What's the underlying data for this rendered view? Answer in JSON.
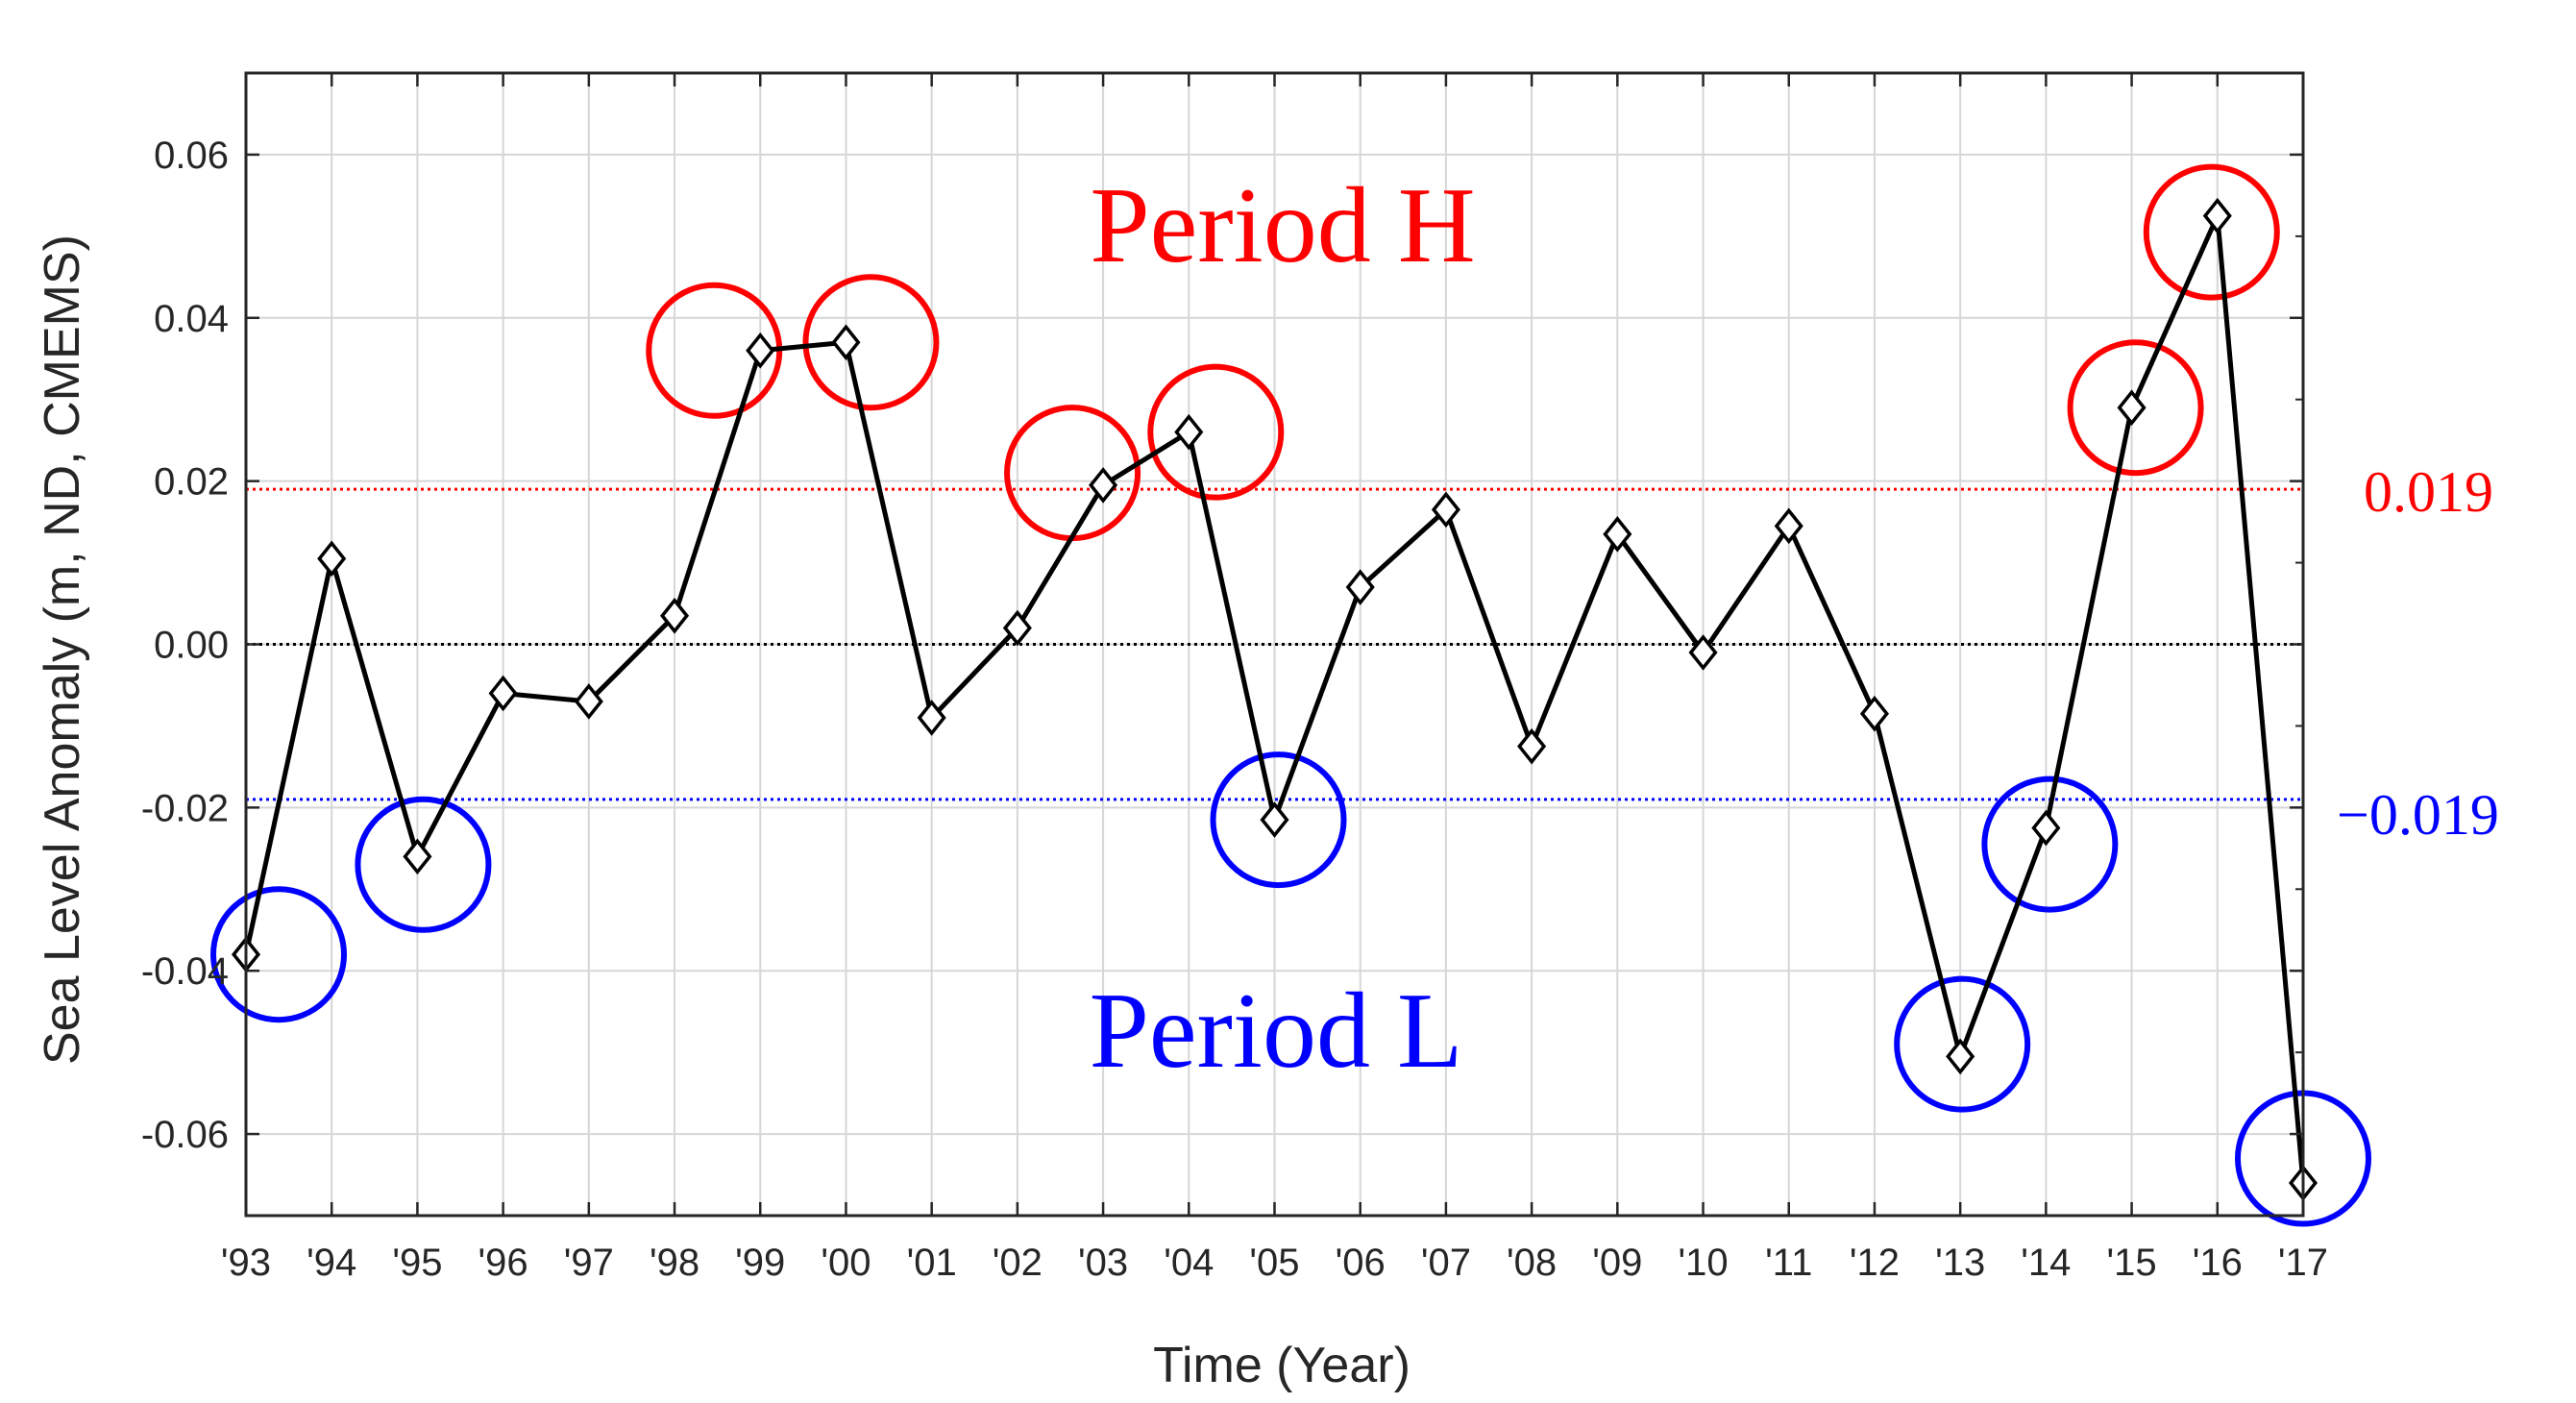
{
  "chart_data": {
    "type": "line",
    "xlabel": "Time (Year)",
    "ylabel": "Sea Level Anomaly (m, ND, CMEMS)",
    "categories": [
      "'93",
      "'94",
      "'95",
      "'96",
      "'97",
      "'98",
      "'99",
      "'00",
      "'01",
      "'02",
      "'03",
      "'04",
      "'05",
      "'06",
      "'07",
      "'08",
      "'09",
      "'10",
      "'11",
      "'12",
      "'13",
      "'14",
      "'15",
      "'16",
      "'17"
    ],
    "series": [
      {
        "values": [
          -0.038,
          0.0105,
          -0.026,
          -0.006,
          -0.007,
          0.0035,
          0.036,
          0.037,
          -0.009,
          0.002,
          0.0195,
          0.026,
          -0.0215,
          0.007,
          0.0165,
          -0.0125,
          0.0135,
          -0.001,
          0.0145,
          -0.0085,
          -0.0505,
          -0.0225,
          0.029,
          0.0525,
          -0.066
        ],
        "color": "#000000",
        "marker": "diamond"
      }
    ],
    "ylim": [
      -0.07,
      0.07
    ],
    "yticks": [
      -0.06,
      -0.04,
      -0.02,
      0.0,
      0.02,
      0.04,
      0.06
    ],
    "ytick_labels": [
      "-0.06",
      "-0.04",
      "-0.02",
      "0.00",
      "0.02",
      "0.04",
      "0.06"
    ],
    "grid": true,
    "reference_lines": [
      {
        "value": 0.019,
        "label": "0.019",
        "color": "#ff0000",
        "style": "dotted"
      },
      {
        "value": 0.0,
        "label": "",
        "color": "#000000",
        "style": "dotted"
      },
      {
        "value": -0.019,
        "label": "−0.019",
        "color": "#0000ff",
        "style": "dotted"
      }
    ],
    "annotations": [
      {
        "text": "Period H",
        "color": "#ff0000"
      },
      {
        "text": "Period L",
        "color": "#0000ff"
      }
    ],
    "highlight_high": {
      "color": "#ff0000",
      "categories": [
        "'99",
        "'00",
        "'03",
        "'04",
        "'15",
        "'16"
      ]
    },
    "highlight_low": {
      "color": "#0000ff",
      "categories": [
        "'93",
        "'95",
        "'05",
        "'13",
        "'14",
        "'17"
      ]
    }
  }
}
